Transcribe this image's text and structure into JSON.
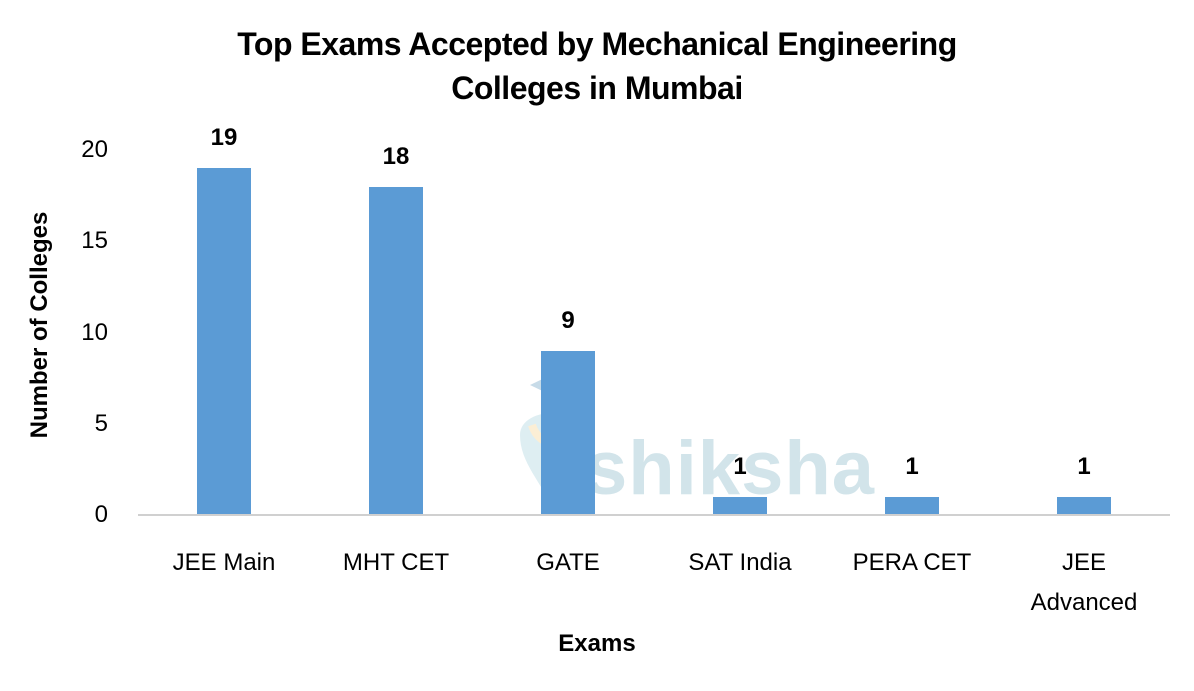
{
  "chart_data": {
    "type": "bar",
    "title": "Top Exams Accepted by Mechanical Engineering Colleges in Mumbai",
    "title_lines": [
      "Top Exams Accepted by Mechanical Engineering",
      "Colleges in Mumbai"
    ],
    "xlabel": "Exams",
    "ylabel": "Number of Colleges",
    "categories": [
      "JEE Main",
      "MHT CET",
      "GATE",
      "SAT India",
      "PERA CET",
      "JEE Advanced"
    ],
    "category_lines": [
      [
        "JEE Main"
      ],
      [
        "MHT CET"
      ],
      [
        "GATE"
      ],
      [
        "SAT India"
      ],
      [
        "PERA CET"
      ],
      [
        "JEE",
        "Advanced"
      ]
    ],
    "values": [
      19,
      18,
      9,
      1,
      1,
      1
    ],
    "data_labels": [
      "19",
      "18",
      "9",
      "1",
      "1",
      "1"
    ],
    "ylim": [
      0,
      20
    ],
    "yticks": [
      0,
      5,
      10,
      15,
      20
    ],
    "ytick_labels": [
      "0",
      "5",
      "10",
      "15",
      "20"
    ],
    "grid": false,
    "legend": null,
    "bar_color": "#5b9bd5",
    "watermark": "shiksha"
  }
}
